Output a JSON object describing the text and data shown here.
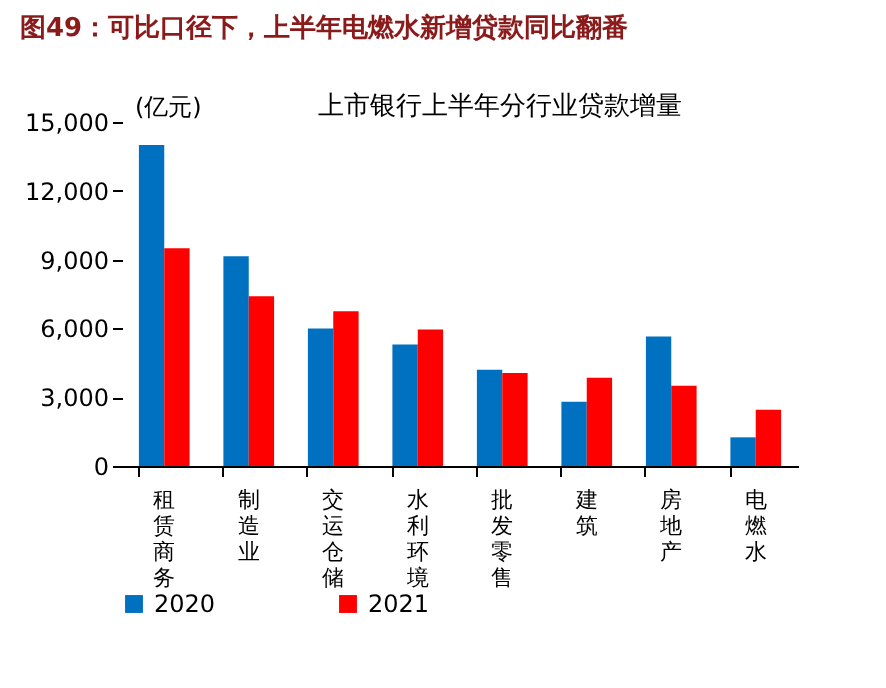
{
  "chart_data": {
    "type": "bar",
    "title": "图49：可比口径下，上半年电燃水新增贷款同比翻番",
    "subtitle": "上市银行上半年分行业贷款增量",
    "ylabel": "(亿元)",
    "categories": [
      "租赁商务",
      "制造业",
      "交运仓储",
      "水利环境",
      "批发零售",
      "建筑",
      "房地产",
      "电燃水"
    ],
    "series": [
      {
        "name": "2020",
        "color": "#0070c0",
        "values": [
          14000,
          9150,
          6000,
          5300,
          4200,
          2800,
          5650,
          1250
        ]
      },
      {
        "name": "2021",
        "color": "#ff0000",
        "values": [
          9500,
          7400,
          6750,
          5950,
          4050,
          3850,
          3500,
          2450
        ]
      }
    ],
    "ylim": [
      0,
      15000
    ],
    "yticks": [
      {
        "value": 0,
        "label": "0"
      },
      {
        "value": 3000,
        "label": "3,000"
      },
      {
        "value": 6000,
        "label": "6,000"
      },
      {
        "value": 9000,
        "label": "9,000"
      },
      {
        "value": 12000,
        "label": "12,000"
      },
      {
        "value": 15000,
        "label": "15,000"
      }
    ],
    "grid": false,
    "legend": "bottom"
  }
}
